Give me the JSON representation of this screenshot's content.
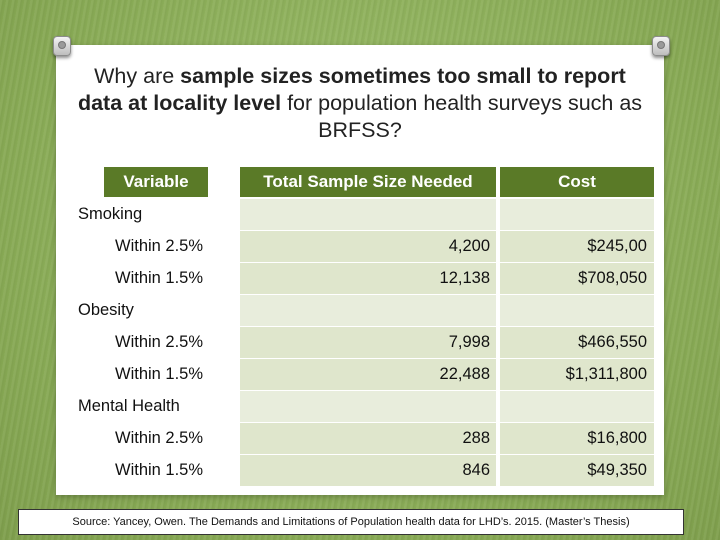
{
  "title": {
    "part1": "Why are ",
    "bold1": "sample sizes sometimes too small to report data at locality level",
    "part2": " for population health surveys such as BRFSS?"
  },
  "table": {
    "headers": [
      "Variable",
      "Total Sample Size Needed",
      "Cost"
    ],
    "groups": [
      {
        "name": "Smoking",
        "rows": [
          {
            "label": "Within 2.5%",
            "sample": "4,200",
            "cost": "$245,00"
          },
          {
            "label": "Within 1.5%",
            "sample": "12,138",
            "cost": "$708,050"
          }
        ]
      },
      {
        "name": "Obesity",
        "rows": [
          {
            "label": "Within 2.5%",
            "sample": "7,998",
            "cost": "$466,550"
          },
          {
            "label": "Within 1.5%",
            "sample": "22,488",
            "cost": "$1,311,800"
          }
        ]
      },
      {
        "name": "Mental Health",
        "rows": [
          {
            "label": "Within 2.5%",
            "sample": "288",
            "cost": "$16,800"
          },
          {
            "label": "Within 1.5%",
            "sample": "846",
            "cost": "$49,350"
          }
        ]
      }
    ]
  },
  "source": "Source: Yancey, Owen. The Demands and Limitations of Population health data for LHD’s. 2015. (Master’s Thesis)",
  "colors": {
    "background": "#8db05b",
    "header_fill": "#5a7a27",
    "row_fill_light": "#e8eddc",
    "row_fill": "#dfe6cc"
  }
}
